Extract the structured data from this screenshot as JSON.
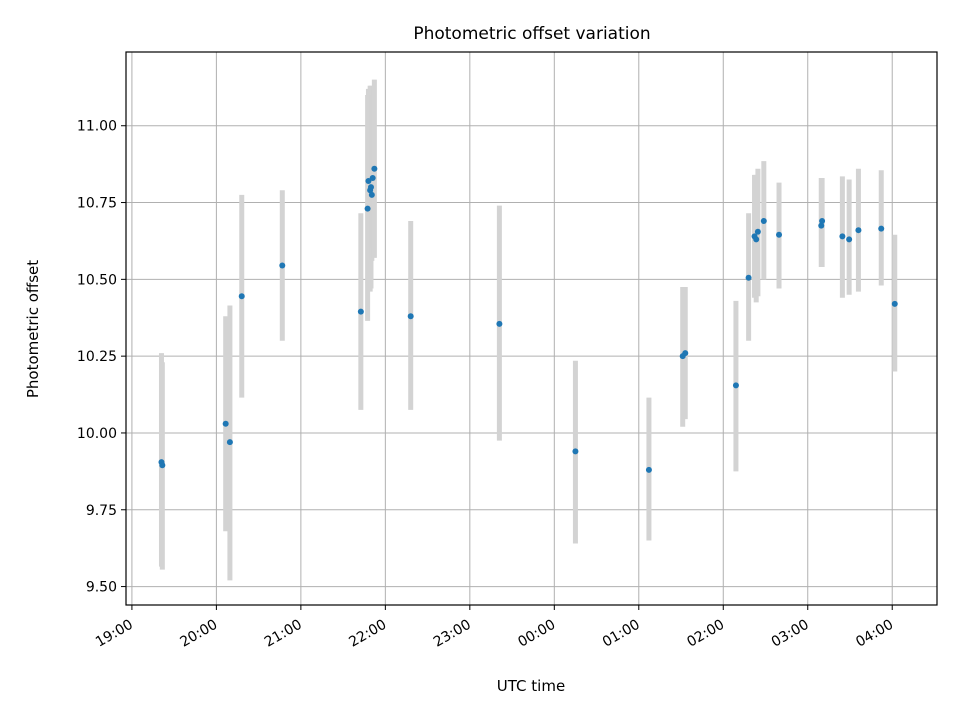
{
  "chart_data": {
    "type": "scatter",
    "title": "Photometric offset variation",
    "xlabel": "UTC time",
    "ylabel": "Photometric offset",
    "x_units": "hours since 19:00 UTC",
    "xlim": [
      -0.07,
      9.53
    ],
    "ylim": [
      9.44,
      11.24
    ],
    "x_ticks": [
      {
        "value": 0,
        "label": "19:00"
      },
      {
        "value": 1,
        "label": "20:00"
      },
      {
        "value": 2,
        "label": "21:00"
      },
      {
        "value": 3,
        "label": "22:00"
      },
      {
        "value": 4,
        "label": "23:00"
      },
      {
        "value": 5,
        "label": "00:00"
      },
      {
        "value": 6,
        "label": "01:00"
      },
      {
        "value": 7,
        "label": "02:00"
      },
      {
        "value": 8,
        "label": "03:00"
      },
      {
        "value": 9,
        "label": "04:00"
      }
    ],
    "y_ticks": [
      {
        "value": 9.5,
        "label": "9.50"
      },
      {
        "value": 9.75,
        "label": "9.75"
      },
      {
        "value": 10.0,
        "label": "10.00"
      },
      {
        "value": 10.25,
        "label": "10.25"
      },
      {
        "value": 10.5,
        "label": "10.50"
      },
      {
        "value": 10.75,
        "label": "10.75"
      },
      {
        "value": 11.0,
        "label": "11.00"
      }
    ],
    "grid": true,
    "marker_color": "#1f77b4",
    "errorbar_color": "#d3d3d3",
    "points": [
      {
        "x": 0.35,
        "y": 9.905,
        "lo": 9.565,
        "hi": 10.26
      },
      {
        "x": 0.36,
        "y": 9.895,
        "lo": 9.555,
        "hi": 10.23
      },
      {
        "x": 1.11,
        "y": 10.03,
        "lo": 9.68,
        "hi": 10.38
      },
      {
        "x": 1.16,
        "y": 9.97,
        "lo": 9.52,
        "hi": 10.415
      },
      {
        "x": 1.3,
        "y": 10.445,
        "lo": 10.115,
        "hi": 10.775
      },
      {
        "x": 1.78,
        "y": 10.545,
        "lo": 10.3,
        "hi": 10.79
      },
      {
        "x": 2.71,
        "y": 10.395,
        "lo": 10.075,
        "hi": 10.715
      },
      {
        "x": 2.79,
        "y": 10.73,
        "lo": 10.365,
        "hi": 11.1
      },
      {
        "x": 2.8,
        "y": 10.82,
        "lo": 10.49,
        "hi": 11.12
      },
      {
        "x": 2.82,
        "y": 10.79,
        "lo": 10.46,
        "hi": 11.13
      },
      {
        "x": 2.83,
        "y": 10.8,
        "lo": 10.47,
        "hi": 11.13
      },
      {
        "x": 2.84,
        "y": 10.775,
        "lo": 10.56,
        "hi": 11.1
      },
      {
        "x": 2.85,
        "y": 10.83,
        "lo": 10.6,
        "hi": 11.1
      },
      {
        "x": 2.87,
        "y": 10.86,
        "lo": 10.57,
        "hi": 11.15
      },
      {
        "x": 3.3,
        "y": 10.38,
        "lo": 10.075,
        "hi": 10.69
      },
      {
        "x": 4.35,
        "y": 10.355,
        "lo": 9.975,
        "hi": 10.74
      },
      {
        "x": 5.25,
        "y": 9.94,
        "lo": 9.64,
        "hi": 10.235
      },
      {
        "x": 6.12,
        "y": 9.88,
        "lo": 9.65,
        "hi": 10.115
      },
      {
        "x": 6.52,
        "y": 10.25,
        "lo": 10.02,
        "hi": 10.475
      },
      {
        "x": 6.55,
        "y": 10.26,
        "lo": 10.045,
        "hi": 10.475
      },
      {
        "x": 7.15,
        "y": 10.155,
        "lo": 9.875,
        "hi": 10.43
      },
      {
        "x": 7.3,
        "y": 10.505,
        "lo": 10.3,
        "hi": 10.715
      },
      {
        "x": 7.37,
        "y": 10.64,
        "lo": 10.44,
        "hi": 10.84
      },
      {
        "x": 7.39,
        "y": 10.63,
        "lo": 10.425,
        "hi": 10.84
      },
      {
        "x": 7.41,
        "y": 10.655,
        "lo": 10.445,
        "hi": 10.86
      },
      {
        "x": 7.48,
        "y": 10.69,
        "lo": 10.5,
        "hi": 10.885
      },
      {
        "x": 7.66,
        "y": 10.645,
        "lo": 10.47,
        "hi": 10.815
      },
      {
        "x": 8.16,
        "y": 10.675,
        "lo": 10.54,
        "hi": 10.83
      },
      {
        "x": 8.17,
        "y": 10.69,
        "lo": 10.54,
        "hi": 10.83
      },
      {
        "x": 8.41,
        "y": 10.64,
        "lo": 10.44,
        "hi": 10.835
      },
      {
        "x": 8.49,
        "y": 10.63,
        "lo": 10.45,
        "hi": 10.825
      },
      {
        "x": 8.6,
        "y": 10.66,
        "lo": 10.46,
        "hi": 10.86
      },
      {
        "x": 8.87,
        "y": 10.665,
        "lo": 10.48,
        "hi": 10.855
      },
      {
        "x": 9.03,
        "y": 10.42,
        "lo": 10.2,
        "hi": 10.645
      }
    ]
  }
}
